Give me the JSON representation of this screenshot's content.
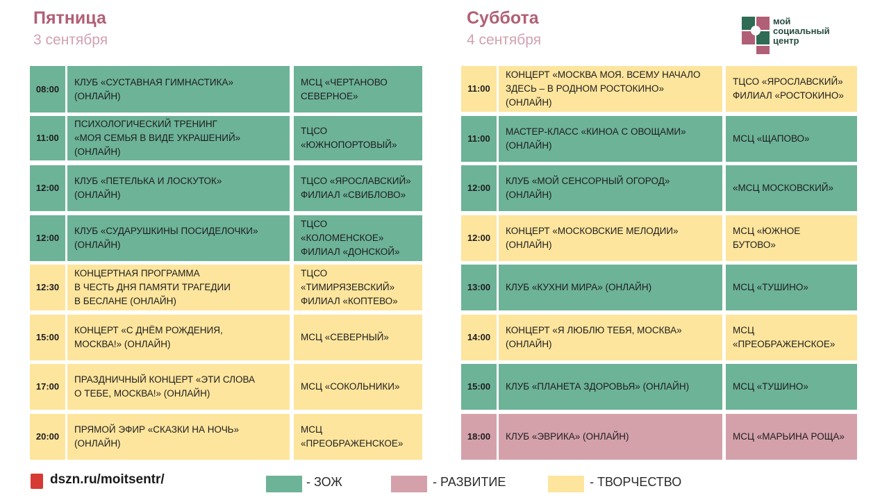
{
  "friday": {
    "title": "Пятница",
    "date": "3 сентября"
  },
  "saturday": {
    "title": "Суббота",
    "date": "4 сентября"
  },
  "logo": {
    "text": "мой\nсоциальный\nцентр"
  },
  "friday_rows": [
    {
      "time": "08:00",
      "event": "КЛУБ «СУСТАВНАЯ ГИМНАСТИКА»\n(ОНЛАЙН)",
      "venue": "МСЦ «ЧЕРТАНОВО\nСЕВЕРНОЕ»",
      "category": "zoj"
    },
    {
      "time": "11:00",
      "event": " ПСИХОЛОГИЧЕСКИЙ ТРЕНИНГ\n«МОЯ СЕМЬЯ В ВИДЕ УКРАШЕНИЙ»\n(ОНЛАЙН)",
      "venue": "ТЦСО\n«ЮЖНОПОРТОВЫЙ»",
      "category": "zoj"
    },
    {
      "time": "12:00",
      "event": "КЛУБ «ПЕТЕЛЬКА И ЛОСКУТОК»\n (ОНЛАЙН)",
      "venue": "ТЦСО «ЯРОСЛАВСКИЙ»\n ФИЛИАЛ «СВИБЛОВО»",
      "category": "zoj"
    },
    {
      "time": "12:00",
      "event": "КЛУБ «СУДАРУШКИНЫ ПОСИДЕЛОЧКИ»\n(ОНЛАЙН)",
      "venue": "ТЦСО\n «КОЛОМЕНСКОЕ»\nФИЛИАЛ «ДОНСКОЙ»",
      "category": "zoj"
    },
    {
      "time": "12:30",
      "event": "КОНЦЕРТНАЯ ПРОГРАММА\nВ ЧЕСТЬ ДНЯ ПАМЯТИ ТРАГЕДИИ\nВ БЕСЛАНЕ (ОНЛАЙН)",
      "venue": "ТЦСО\n«ТИМИРЯЗЕВСКИЙ»\n ФИЛИАЛ «КОПТЕВО»",
      "category": "tvor"
    },
    {
      "time": "15:00",
      "event": "КОНЦЕРТ «С ДНЁМ РОЖДЕНИЯ,\nМОСКВА!» (ОНЛАЙН)",
      "venue": "МСЦ «СЕВЕРНЫЙ»",
      "category": "tvor"
    },
    {
      "time": "17:00",
      "event": "ПРАЗДНИЧНЫЙ КОНЦЕРТ «ЭТИ СЛОВА\nО ТЕБЕ, МОСКВА!» (ОНЛАЙН)",
      "venue": "МСЦ «СОКОЛЬНИКИ»",
      "category": "tvor"
    },
    {
      "time": "20:00",
      "event": "ПРЯМОЙ ЭФИР «СКАЗКИ НА НОЧЬ»\n(ОНЛАЙН)",
      "venue": "МСЦ\n«ПРЕОБРАЖЕНСКОЕ»",
      "category": "tvor"
    }
  ],
  "saturday_rows": [
    {
      "time": "11:00",
      "event": "КОНЦЕРТ «МОСКВА МОЯ. ВСЕМУ НАЧАЛО\nЗДЕСЬ – В РОДНОМ РОСТОКИНО»\n(ОНЛАЙН)",
      "venue": "ТЦСО «ЯРОСЛАВСКИЙ»\n ФИЛИАЛ «РОСТОКИНО»",
      "category": "tvor"
    },
    {
      "time": "11:00",
      "event": "МАСТЕР-КЛАСС «КИНОА С ОВОЩАМИ»\n (ОНЛАЙН)",
      "venue": "МСЦ «ЩАПОВО»",
      "category": "zoj"
    },
    {
      "time": "12:00",
      "event": "КЛУБ «МОЙ СЕНСОРНЫЙ ОГОРОД»\n(ОНЛАЙН)",
      "venue": "«МСЦ МОСКОВСКИЙ»",
      "category": "zoj"
    },
    {
      "time": "12:00",
      "event": "КОНЦЕРТ «МОСКОВСКИЕ МЕЛОДИИ»\n(ОНЛАЙН)",
      "venue": "МСЦ «ЮЖНОЕ\n БУТОВО»",
      "category": "tvor"
    },
    {
      "time": "13:00",
      "event": "КЛУБ «КУХНИ МИРА» (ОНЛАЙН)",
      "venue": "МСЦ «ТУШИНО»",
      "category": "zoj"
    },
    {
      "time": "14:00",
      "event": "КОНЦЕРТ «Я ЛЮБЛЮ ТЕБЯ, МОСКВА»\n (ОНЛАЙН)",
      "venue": " МСЦ\n«ПРЕОБРАЖЕНСКОЕ»",
      "category": "tvor"
    },
    {
      "time": "15:00",
      "event": "КЛУБ «ПЛАНЕТА ЗДОРОВЬЯ» (ОНЛАЙН)",
      "venue": "МСЦ «ТУШИНО»",
      "category": "zoj"
    },
    {
      "time": "18:00",
      "event": "КЛУБ «ЭВРИКА» (ОНЛАЙН)",
      "venue": "МСЦ «МАРЬИНА РОЩА»",
      "category": "razv"
    }
  ],
  "footer": {
    "link": "dszn.ru/moitsentr/"
  },
  "legend": [
    {
      "label": "- ЗОЖ",
      "category": "zoj"
    },
    {
      "label": "- РАЗВИТИЕ",
      "category": "razv"
    },
    {
      "label": "- ТВОРЧЕСТВО",
      "category": "tvor"
    }
  ],
  "colors": {
    "zoj": "#6db398",
    "razv": "#d4a1ab",
    "tvor": "#fde59d",
    "title": "#b15f76",
    "date": "#d2a1ae"
  }
}
